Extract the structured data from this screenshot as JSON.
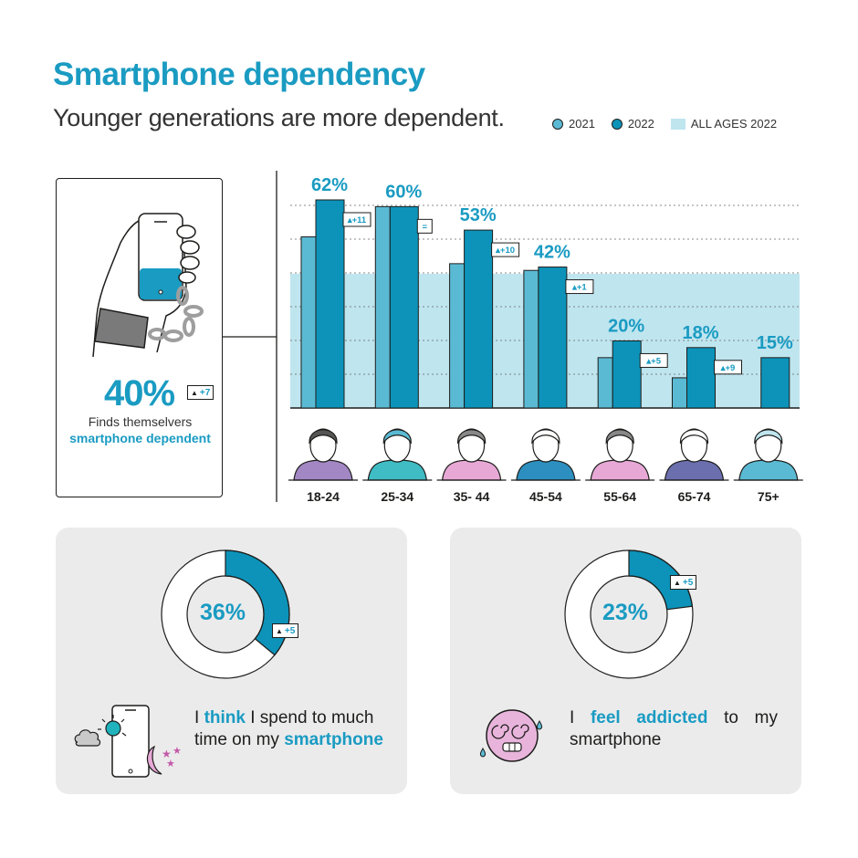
{
  "title": "Smartphone dependency",
  "subtitle": "Younger generations are more dependent.",
  "legend": {
    "y2021": "2021",
    "y2022": "2022",
    "all": "ALL AGES 2022"
  },
  "hero": {
    "value": "40%",
    "change": "+7",
    "line1": "Finds themselvers",
    "line2": "smartphone dependent"
  },
  "colors": {
    "c2021": "#5bbad3",
    "c2022": "#0d93b9",
    "band": "#bfe5ef",
    "accent": "#1a9bc2",
    "ink": "#1d1d1b"
  },
  "chart_data": {
    "type": "bar",
    "categories": [
      "18-24",
      "25-34",
      "35- 44",
      "45-54",
      "55-64",
      "65-74",
      "75+"
    ],
    "series": [
      {
        "name": "2021",
        "values": [
          51,
          60,
          43,
          41,
          15,
          9,
          null
        ]
      },
      {
        "name": "2022",
        "values": [
          62,
          60,
          53,
          42,
          20,
          18,
          15
        ]
      }
    ],
    "value_labels": [
      "62%",
      "60%",
      "53%",
      "42%",
      "20%",
      "18%",
      "15%"
    ],
    "changes": [
      "+11",
      "=",
      "+10",
      "+1",
      "+5",
      "+9",
      ""
    ],
    "reference": {
      "name": "ALL AGES 2022",
      "value": 40
    },
    "ylim": [
      0,
      62
    ],
    "grid": true
  },
  "panel_think": {
    "value": "36%",
    "fraction": 0.36,
    "change": "+5",
    "pre": "I ",
    "bold1": "think",
    "mid": " I spend to much time on my ",
    "bold2": "smartphone"
  },
  "panel_addicted": {
    "value": "23%",
    "fraction": 0.23,
    "change": "+5",
    "pre": "I ",
    "bold1": "feel addicted",
    "post": " to my smartphone"
  }
}
